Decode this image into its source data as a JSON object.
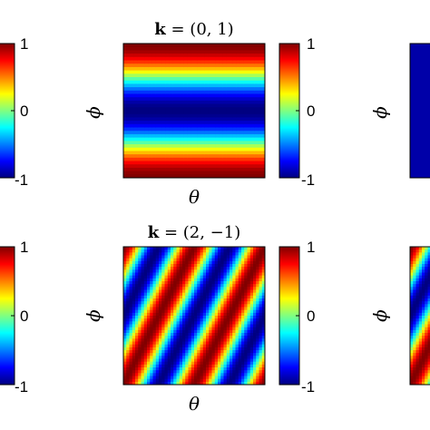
{
  "chart_data": [
    {
      "type": "heatmap",
      "panel": "top-left (cropped, colorbar only)",
      "colorbar": {
        "ticks": [
          "1",
          "0",
          "-1"
        ],
        "clim": [
          -1,
          1
        ],
        "colormap": "jet"
      }
    },
    {
      "type": "heatmap",
      "panel": "top-middle",
      "title_prefix": "k",
      "title_rest": " = (0, 1)",
      "xlabel": "θ",
      "ylabel": "ϕ",
      "wave_vector": [
        0,
        1
      ],
      "colormap": "jet",
      "clim": [
        -1,
        1
      ],
      "colorbar": {
        "ticks": [
          "1",
          "0",
          "-1"
        ]
      }
    },
    {
      "type": "heatmap",
      "panel": "top-right (cropped)",
      "ylabel": "ϕ",
      "fill_value": -1
    },
    {
      "type": "heatmap",
      "panel": "bottom-left (cropped, colorbar only)",
      "colorbar": {
        "ticks": [
          "1",
          "0",
          "-1"
        ],
        "clim": [
          -1,
          1
        ],
        "colormap": "jet"
      }
    },
    {
      "type": "heatmap",
      "panel": "bottom-middle",
      "title_prefix": "k",
      "title_rest": " = (2, −1)",
      "xlabel": "θ",
      "ylabel": "ϕ",
      "wave_vector": [
        2,
        -1
      ],
      "colormap": "jet",
      "clim": [
        -1,
        1
      ],
      "colorbar": {
        "ticks": [
          "1",
          "0",
          "-1"
        ]
      }
    },
    {
      "type": "heatmap",
      "panel": "bottom-right (cropped)",
      "ylabel": "ϕ",
      "wave_vector": [
        2,
        -1
      ]
    }
  ]
}
